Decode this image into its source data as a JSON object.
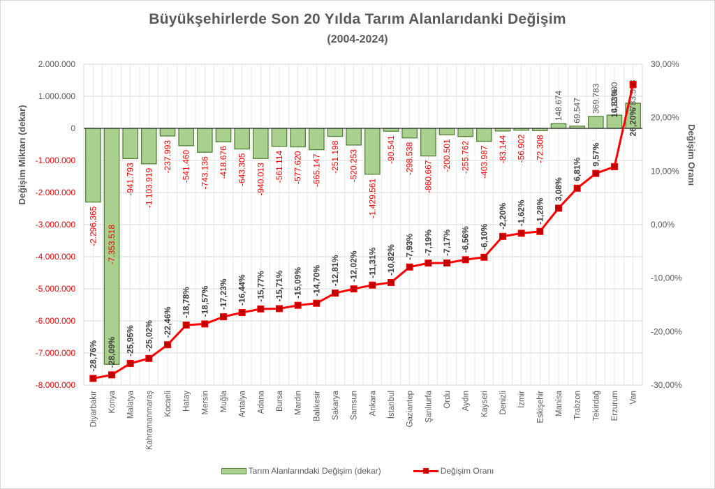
{
  "chart_data": {
    "type": "bar+line",
    "title": "Büyükşehirlerde Son 20 Yılda Tarım Alanlarıdanki Değişim",
    "subtitle": "(2004-2024)",
    "ylabel": "Değişim Miktarı (dekar)",
    "y2label": "Değişim Oranı",
    "ylim": [
      -8000000,
      2000000
    ],
    "y2lim": [
      -30,
      30
    ],
    "yticks": [
      "2.000.000",
      "1.000.000",
      "0",
      "-1.000.000",
      "-2.000.000",
      "-3.000.000",
      "-4.000.000",
      "-5.000.000",
      "-6.000.000",
      "-7.000.000",
      "-8.000.000"
    ],
    "y2ticks": [
      "30,00%",
      "20,00%",
      "10,00%",
      "0,00%",
      "-10,00%",
      "-20,00%",
      "-30,00%"
    ],
    "grid": true,
    "legend_position": "bottom",
    "categories": [
      "Diyarbakır",
      "Konya",
      "Malatya",
      "Kahramanmaraş",
      "Kocaeli",
      "Hatay",
      "Mersin",
      "Muğla",
      "Antalya",
      "Adana",
      "Bursa",
      "Mardin",
      "Balıkesir",
      "Sakarya",
      "Samsun",
      "Ankara",
      "İstanbul",
      "Gaziantep",
      "Şanlıurfa",
      "Ordu",
      "Aydın",
      "Kayseri",
      "Denizli",
      "İzmir",
      "Eskişehir",
      "Manisa",
      "Trabzon",
      "Tekirdağ",
      "Erzurum",
      "Van"
    ],
    "series": [
      {
        "name": "Tarım Alanlarındaki Değişim (dekar)",
        "type": "bar",
        "axis": "left",
        "color": "#a9d08e",
        "values": [
          -2296365,
          -7353518,
          -941793,
          -1103919,
          -237993,
          -541460,
          -743136,
          -418676,
          -643305,
          -940013,
          -561114,
          -577620,
          -665147,
          -251198,
          -520253,
          -1429561,
          -90541,
          -298538,
          -860667,
          -200501,
          -255762,
          -403987,
          -83144,
          -56902,
          -72308,
          148674,
          69547,
          369783,
          412080,
          783598
        ],
        "labels": [
          "-2.296.365",
          "-7.353.518",
          "-941.793",
          "-1.103.919",
          "-237.993",
          "-541.460",
          "-743.136",
          "-418.676",
          "-643.305",
          "-940.013",
          "-561.114",
          "-577.620",
          "-665.147",
          "-251.198",
          "-520.253",
          "-1.429.561",
          "-90.541",
          "-298.538",
          "-860.667",
          "-200.501",
          "-255.762",
          "-403.987",
          "-83.144",
          "-56.902",
          "-72.308",
          "148.674",
          "69.547",
          "369.783",
          "412.080",
          "783.598"
        ]
      },
      {
        "name": "Değişim Oranı",
        "type": "line",
        "axis": "right",
        "color": "#ff0000",
        "values": [
          -28.76,
          -28.09,
          -25.95,
          -25.02,
          -22.46,
          -18.78,
          -18.57,
          -17.23,
          -16.44,
          -15.77,
          -15.71,
          -15.09,
          -14.7,
          -12.81,
          -12.02,
          -11.31,
          -10.82,
          -7.93,
          -7.19,
          -7.17,
          -6.56,
          -6.1,
          -2.2,
          -1.62,
          -1.28,
          3.08,
          6.81,
          9.57,
          10.83,
          26.2
        ],
        "labels": [
          "-28,76%",
          "-28,09%",
          "-25,95%",
          "-25,02%",
          "-22,46%",
          "-18,78%",
          "-18,57%",
          "-17,23%",
          "-16,44%",
          "-15,77%",
          "-15,71%",
          "-15,09%",
          "-14,70%",
          "-12,81%",
          "-12,02%",
          "-11,31%",
          "-10,82%",
          "-7,93%",
          "-7,19%",
          "-7,17%",
          "-6,56%",
          "-6,10%",
          "-2,20%",
          "-1,62%",
          "-1,28%",
          "3,08%",
          "6,81%",
          "9,57%",
          "10,83%",
          "26,20%"
        ]
      }
    ]
  },
  "colors": {
    "bar_fill": "#a9d08e",
    "bar_stroke": "#538135",
    "line": "#ff0000",
    "marker": "#c00000",
    "negative_label": "#ff0000",
    "positive_label": "#595959",
    "axis_text": "#595959",
    "grid": "#d9d9d9"
  },
  "legend": {
    "bar_label": "Tarım Alanlarındaki Değişim (dekar)",
    "line_label": "Değişim Oranı"
  }
}
